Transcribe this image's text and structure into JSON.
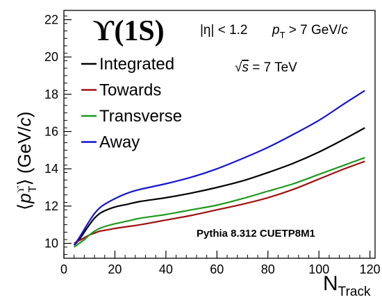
{
  "chart_data": {
    "type": "line",
    "title": "ϒ(1S)",
    "ylabel": "⟨pT^ϒ⟩ (GeV/c)",
    "ylabel_parts": {
      "open": "⟨",
      "p": "p",
      "sup": "ϒ",
      "sub": "T",
      "close": "⟩ (GeV/",
      "unit_c": "c",
      "end": ")"
    },
    "xlabel": "NTrack",
    "xlabel_parts": {
      "main": "N",
      "sub": "Track"
    },
    "xlim": [
      0,
      122
    ],
    "ylim": [
      9.2,
      22.5
    ],
    "x_ticks": [
      0,
      20,
      40,
      60,
      80,
      100,
      120
    ],
    "y_ticks": [
      10,
      12,
      14,
      16,
      18,
      20,
      22
    ],
    "x_tick_labels": [
      "0",
      "20",
      "40",
      "60",
      "80",
      "100",
      "120"
    ],
    "y_tick_labels": [
      "10",
      "12",
      "14",
      "16",
      "18",
      "20",
      "22"
    ],
    "annotations": {
      "eta_cut": "|η| < 1.2",
      "pt_cut_p": "p",
      "pt_cut_sub": "T",
      "pt_cut_rest": " > 7 GeV/",
      "pt_cut_c": "c",
      "energy_sqrt": "√",
      "energy_s": "s",
      "energy_rest": " = 7 TeV",
      "generator": "Pythia 8.312 CUETP8M1"
    },
    "legend_placement": "top-left",
    "series": [
      {
        "name": "Integrated",
        "color": "#000000",
        "x": [
          4,
          6,
          8,
          10,
          12,
          14,
          16,
          20,
          25,
          30,
          40,
          50,
          60,
          70,
          80,
          90,
          100,
          110,
          118
        ],
        "y": [
          9.9,
          10.2,
          10.6,
          11.0,
          11.35,
          11.6,
          11.75,
          11.95,
          12.1,
          12.25,
          12.45,
          12.7,
          13.0,
          13.35,
          13.8,
          14.3,
          14.9,
          15.6,
          16.2
        ]
      },
      {
        "name": "Towards",
        "color": "#a01010",
        "x": [
          4,
          6,
          8,
          10,
          12,
          14,
          16,
          20,
          25,
          30,
          40,
          50,
          60,
          70,
          80,
          90,
          100,
          110,
          118
        ],
        "y": [
          10.0,
          10.15,
          10.3,
          10.45,
          10.55,
          10.65,
          10.7,
          10.8,
          10.9,
          11.0,
          11.25,
          11.5,
          11.8,
          12.1,
          12.45,
          12.9,
          13.45,
          14.0,
          14.4
        ]
      },
      {
        "name": "Transverse",
        "color": "#1a9a1a",
        "x": [
          4,
          6,
          8,
          10,
          12,
          14,
          16,
          20,
          25,
          30,
          40,
          50,
          60,
          70,
          80,
          90,
          100,
          110,
          118
        ],
        "y": [
          9.8,
          10.0,
          10.2,
          10.45,
          10.65,
          10.8,
          10.9,
          11.05,
          11.2,
          11.35,
          11.55,
          11.8,
          12.05,
          12.4,
          12.8,
          13.2,
          13.7,
          14.2,
          14.6
        ]
      },
      {
        "name": "Away",
        "color": "#1414d2",
        "x": [
          4,
          6,
          8,
          10,
          12,
          14,
          16,
          20,
          25,
          30,
          40,
          50,
          60,
          70,
          80,
          90,
          100,
          110,
          118
        ],
        "y": [
          9.9,
          10.3,
          10.75,
          11.2,
          11.6,
          11.9,
          12.1,
          12.4,
          12.7,
          12.9,
          13.2,
          13.55,
          14.0,
          14.55,
          15.15,
          15.85,
          16.6,
          17.5,
          18.2
        ]
      }
    ]
  }
}
